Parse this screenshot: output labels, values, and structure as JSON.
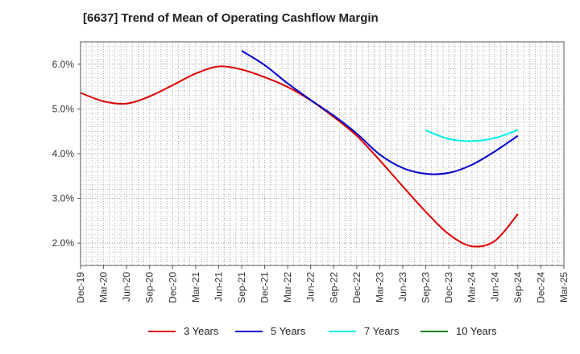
{
  "chart_data": {
    "type": "line",
    "title": "[6637]  Trend of Mean of Operating Cashflow Margin",
    "xlabel": "",
    "ylabel": "",
    "categories": [
      "Dec-19",
      "Mar-20",
      "Jun-20",
      "Sep-20",
      "Dec-20",
      "Mar-21",
      "Jun-21",
      "Sep-21",
      "Dec-21",
      "Mar-22",
      "Jun-22",
      "Sep-22",
      "Dec-22",
      "Mar-23",
      "Jun-23",
      "Sep-23",
      "Dec-23",
      "Mar-24",
      "Jun-24",
      "Sep-24",
      "Dec-24",
      "Mar-25"
    ],
    "ylim": [
      1.5,
      6.5
    ],
    "yticks": [
      2.0,
      3.0,
      4.0,
      5.0,
      6.0
    ],
    "ytick_labels": [
      "2.0%",
      "3.0%",
      "4.0%",
      "5.0%",
      "6.0%"
    ],
    "grid": true,
    "series": [
      {
        "name": "3 Years",
        "color": "#dd0000",
        "values": [
          5.36,
          5.17,
          5.12,
          5.28,
          5.53,
          5.79,
          5.95,
          5.88,
          5.71,
          5.49,
          5.19,
          4.82,
          4.4,
          3.85,
          3.27,
          2.7,
          2.2,
          1.93,
          2.05,
          2.65,
          null,
          null
        ]
      },
      {
        "name": "5 Years",
        "color": "#0000cc",
        "values": [
          null,
          null,
          null,
          null,
          null,
          null,
          null,
          6.3,
          5.98,
          5.57,
          5.2,
          4.85,
          4.45,
          3.98,
          3.68,
          3.55,
          3.57,
          3.75,
          4.05,
          4.4,
          null,
          null
        ]
      },
      {
        "name": "7 Years",
        "color": "#00eeee",
        "values": [
          null,
          null,
          null,
          null,
          null,
          null,
          null,
          null,
          null,
          null,
          null,
          null,
          null,
          null,
          null,
          4.52,
          4.33,
          4.28,
          4.35,
          4.53,
          null,
          null
        ]
      },
      {
        "name": "10 Years",
        "color": "#008000",
        "values": [
          null,
          null,
          null,
          null,
          null,
          null,
          null,
          null,
          null,
          null,
          null,
          null,
          null,
          null,
          null,
          null,
          null,
          null,
          null,
          null,
          null,
          null
        ]
      }
    ]
  }
}
